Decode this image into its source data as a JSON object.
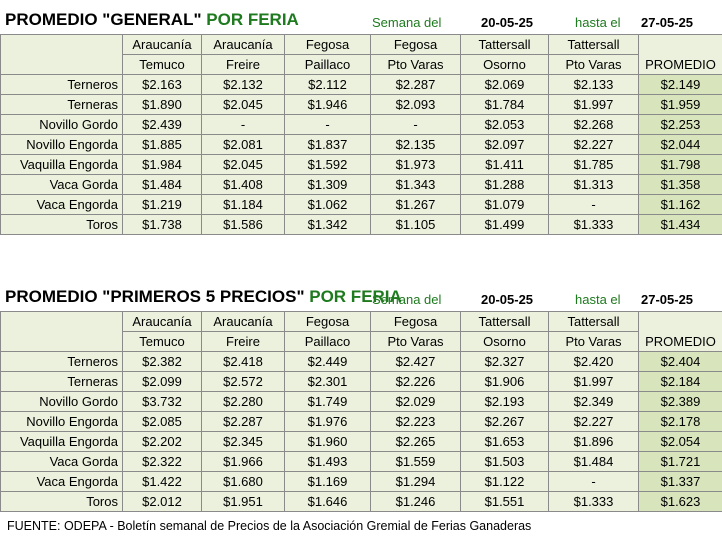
{
  "columns": [
    {
      "l1": "Araucanía",
      "l2": "Temuco"
    },
    {
      "l1": "Araucanía",
      "l2": "Freire"
    },
    {
      "l1": "Fegosa",
      "l2": "Paillaco"
    },
    {
      "l1": "Fegosa",
      "l2": "Pto Varas"
    },
    {
      "l1": "Tattersall",
      "l2": "Osorno"
    },
    {
      "l1": "Tattersall",
      "l2": "Pto Varas"
    }
  ],
  "promedio_label": "PROMEDIO",
  "week_label": "Semana del",
  "date_from": "20-05-25",
  "until_label": "hasta el",
  "date_to": "27-05-25",
  "general": {
    "title_black": "PROMEDIO \"GENERAL\"",
    "title_green": "POR FERIA",
    "rows": [
      {
        "label": "Terneros",
        "values": [
          "$2.163",
          "$2.132",
          "$2.112",
          "$2.287",
          "$2.069",
          "$2.133",
          "$2.149"
        ]
      },
      {
        "label": "Terneras",
        "values": [
          "$1.890",
          "$2.045",
          "$1.946",
          "$2.093",
          "$1.784",
          "$1.997",
          "$1.959"
        ]
      },
      {
        "label": "Novillo Gordo",
        "values": [
          "$2.439",
          "-",
          "-",
          "-",
          "$2.053",
          "$2.268",
          "$2.253"
        ]
      },
      {
        "label": "Novillo Engorda",
        "values": [
          "$1.885",
          "$2.081",
          "$1.837",
          "$2.135",
          "$2.097",
          "$2.227",
          "$2.044"
        ]
      },
      {
        "label": "Vaquilla Engorda",
        "values": [
          "$1.984",
          "$2.045",
          "$1.592",
          "$1.973",
          "$1.411",
          "$1.785",
          "$1.798"
        ]
      },
      {
        "label": "Vaca Gorda",
        "values": [
          "$1.484",
          "$1.408",
          "$1.309",
          "$1.343",
          "$1.288",
          "$1.313",
          "$1.358"
        ]
      },
      {
        "label": "Vaca Engorda",
        "values": [
          "$1.219",
          "$1.184",
          "$1.062",
          "$1.267",
          "$1.079",
          "-",
          "$1.162"
        ]
      },
      {
        "label": "Toros",
        "values": [
          "$1.738",
          "$1.586",
          "$1.342",
          "$1.105",
          "$1.499",
          "$1.333",
          "$1.434"
        ]
      }
    ]
  },
  "top5": {
    "title_black": "PROMEDIO \"PRIMEROS 5 PRECIOS\"",
    "title_green": "POR FERIA",
    "rows": [
      {
        "label": "Terneros",
        "values": [
          "$2.382",
          "$2.418",
          "$2.449",
          "$2.427",
          "$2.327",
          "$2.420",
          "$2.404"
        ]
      },
      {
        "label": "Terneras",
        "values": [
          "$2.099",
          "$2.572",
          "$2.301",
          "$2.226",
          "$1.906",
          "$1.997",
          "$2.184"
        ]
      },
      {
        "label": "Novillo Gordo",
        "values": [
          "$3.732",
          "$2.280",
          "$1.749",
          "$2.029",
          "$2.193",
          "$2.349",
          "$2.389"
        ]
      },
      {
        "label": "Novillo Engorda",
        "values": [
          "$2.085",
          "$2.287",
          "$1.976",
          "$2.223",
          "$2.267",
          "$2.227",
          "$2.178"
        ]
      },
      {
        "label": "Vaquilla Engorda",
        "values": [
          "$2.202",
          "$2.345",
          "$1.960",
          "$2.265",
          "$1.653",
          "$1.896",
          "$2.054"
        ]
      },
      {
        "label": "Vaca Gorda",
        "values": [
          "$2.322",
          "$1.966",
          "$1.493",
          "$1.559",
          "$1.503",
          "$1.484",
          "$1.721"
        ]
      },
      {
        "label": "Vaca Engorda",
        "values": [
          "$1.422",
          "$1.680",
          "$1.169",
          "$1.294",
          "$1.122",
          "-",
          "$1.337"
        ]
      },
      {
        "label": "Toros",
        "values": [
          "$2.012",
          "$1.951",
          "$1.646",
          "$1.246",
          "$1.551",
          "$1.333",
          "$1.623"
        ]
      }
    ]
  },
  "footer": "FUENTE: ODEPA -  Boletín semanal de Precios de la Asociación Gremial de Ferias Ganaderas"
}
